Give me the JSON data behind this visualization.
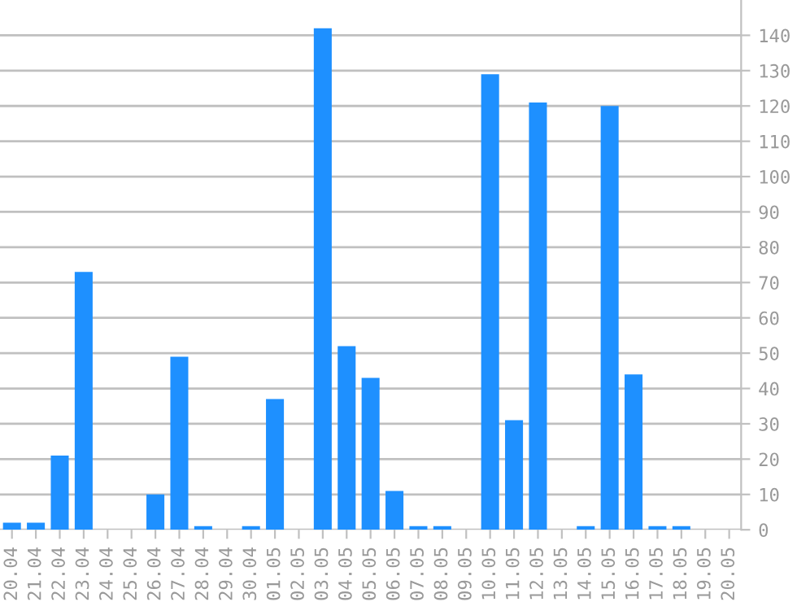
{
  "chart_data": {
    "type": "bar",
    "categories": [
      "20.04",
      "21.04",
      "22.04",
      "23.04",
      "24.04",
      "25.04",
      "26.04",
      "27.04",
      "28.04",
      "29.04",
      "30.04",
      "01.05",
      "02.05",
      "03.05",
      "04.05",
      "05.05",
      "06.05",
      "07.05",
      "08.05",
      "09.05",
      "10.05",
      "11.05",
      "12.05",
      "13.05",
      "14.05",
      "15.05",
      "16.05",
      "17.05",
      "18.05",
      "19.05",
      "20.05"
    ],
    "values": [
      2,
      2,
      21,
      73,
      0,
      0,
      10,
      49,
      1,
      0,
      1,
      37,
      0,
      142,
      52,
      43,
      11,
      1,
      1,
      0,
      129,
      31,
      121,
      0,
      1,
      120,
      44,
      1,
      1,
      0,
      0
    ],
    "color": "#1e90ff",
    "ylim": [
      0,
      150
    ],
    "yticks": [
      0,
      10,
      20,
      30,
      40,
      50,
      60,
      70,
      80,
      90,
      100,
      110,
      120,
      130,
      140
    ],
    "grid": "y"
  }
}
